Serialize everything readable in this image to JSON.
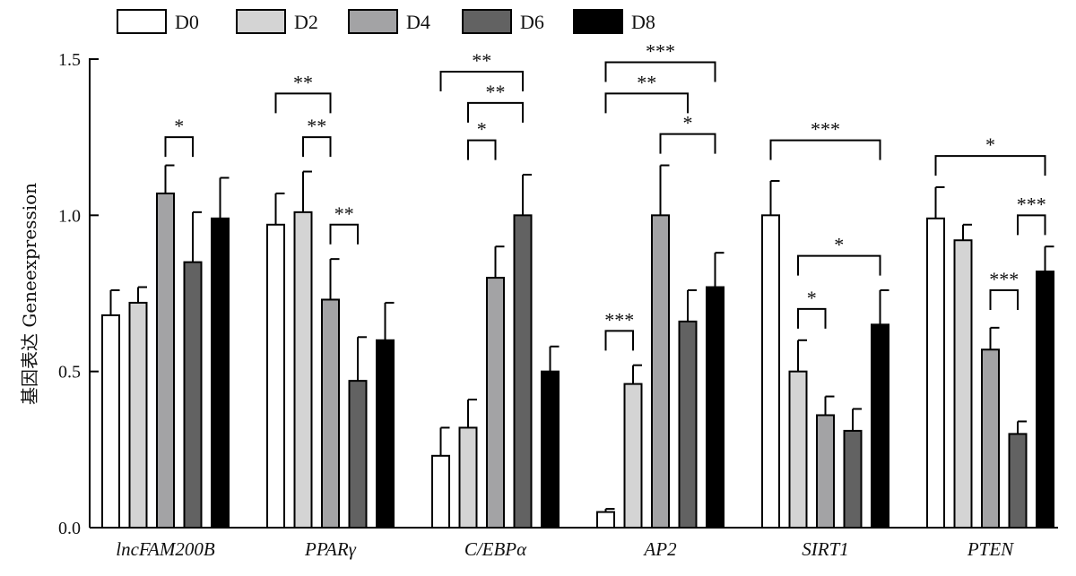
{
  "chart_data": {
    "type": "bar",
    "ylabel": "基因表达 Geneexpression",
    "ylim": [
      0,
      1.5
    ],
    "yticks": [
      {
        "value": 0,
        "label": "0.0"
      },
      {
        "value": 0.5,
        "label": "0.5"
      },
      {
        "value": 1.0,
        "label": "1.0"
      },
      {
        "value": 1.5,
        "label": "1.5"
      }
    ],
    "legend_position": "top",
    "categories": [
      "lncFAM200B",
      "PPARγ",
      "C/EBPα",
      "AP2",
      "SIRT1",
      "PTEN"
    ],
    "series": [
      {
        "name": "D0",
        "color": "#ffffff",
        "values": [
          0.68,
          0.97,
          0.23,
          0.05,
          1.0,
          0.99
        ],
        "errors": [
          0.08,
          0.1,
          0.09,
          0.01,
          0.11,
          0.1
        ]
      },
      {
        "name": "D2",
        "color": "#d4d4d4",
        "values": [
          0.72,
          1.01,
          0.32,
          0.46,
          0.5,
          0.92
        ],
        "errors": [
          0.05,
          0.13,
          0.09,
          0.06,
          0.1,
          0.05
        ]
      },
      {
        "name": "D4",
        "color": "#a3a3a5",
        "values": [
          1.07,
          0.73,
          0.8,
          1.0,
          0.36,
          0.57
        ],
        "errors": [
          0.09,
          0.13,
          0.1,
          0.16,
          0.06,
          0.07
        ]
      },
      {
        "name": "D6",
        "color": "#626262",
        "values": [
          0.85,
          0.47,
          1.0,
          0.66,
          0.31,
          0.3
        ],
        "errors": [
          0.16,
          0.14,
          0.13,
          0.1,
          0.07,
          0.04
        ]
      },
      {
        "name": "D8",
        "color": "#000000",
        "values": [
          0.99,
          0.6,
          0.5,
          0.77,
          0.65,
          0.82
        ],
        "errors": [
          0.13,
          0.12,
          0.08,
          0.11,
          0.11,
          0.08
        ]
      }
    ],
    "significance": [
      {
        "category": 0,
        "from": 2,
        "to": 3,
        "label": "*",
        "y": 1.25
      },
      {
        "category": 1,
        "from": 0,
        "to": 2,
        "label": "**",
        "y": 1.39
      },
      {
        "category": 1,
        "from": 1,
        "to": 2,
        "label": "**",
        "y": 1.25
      },
      {
        "category": 1,
        "from": 2,
        "to": 3,
        "label": "**",
        "y": 0.97
      },
      {
        "category": 2,
        "from": 0,
        "to": 3,
        "label": "**",
        "y": 1.46
      },
      {
        "category": 2,
        "from": 1,
        "to": 3,
        "label": "**",
        "y": 1.36
      },
      {
        "category": 2,
        "from": 1,
        "to": 2,
        "label": "*",
        "y": 1.24
      },
      {
        "category": 3,
        "from": 0,
        "to": 4,
        "label": "***",
        "y": 1.49
      },
      {
        "category": 3,
        "from": 0,
        "to": 3,
        "label": "**",
        "y": 1.39
      },
      {
        "category": 3,
        "from": 2,
        "to": 4,
        "label": "*",
        "y": 1.26
      },
      {
        "category": 3,
        "from": 0,
        "to": 1,
        "label": "***",
        "y": 0.63
      },
      {
        "category": 4,
        "from": 0,
        "to": 4,
        "label": "***",
        "y": 1.24
      },
      {
        "category": 4,
        "from": 1,
        "to": 4,
        "label": "*",
        "y": 0.87
      },
      {
        "category": 4,
        "from": 1,
        "to": 2,
        "label": "*",
        "y": 0.7
      },
      {
        "category": 5,
        "from": 0,
        "to": 4,
        "label": "*",
        "y": 1.19
      },
      {
        "category": 5,
        "from": 3,
        "to": 4,
        "label": "***",
        "y": 1.0
      },
      {
        "category": 5,
        "from": 2,
        "to": 3,
        "label": "***",
        "y": 0.76
      }
    ]
  }
}
